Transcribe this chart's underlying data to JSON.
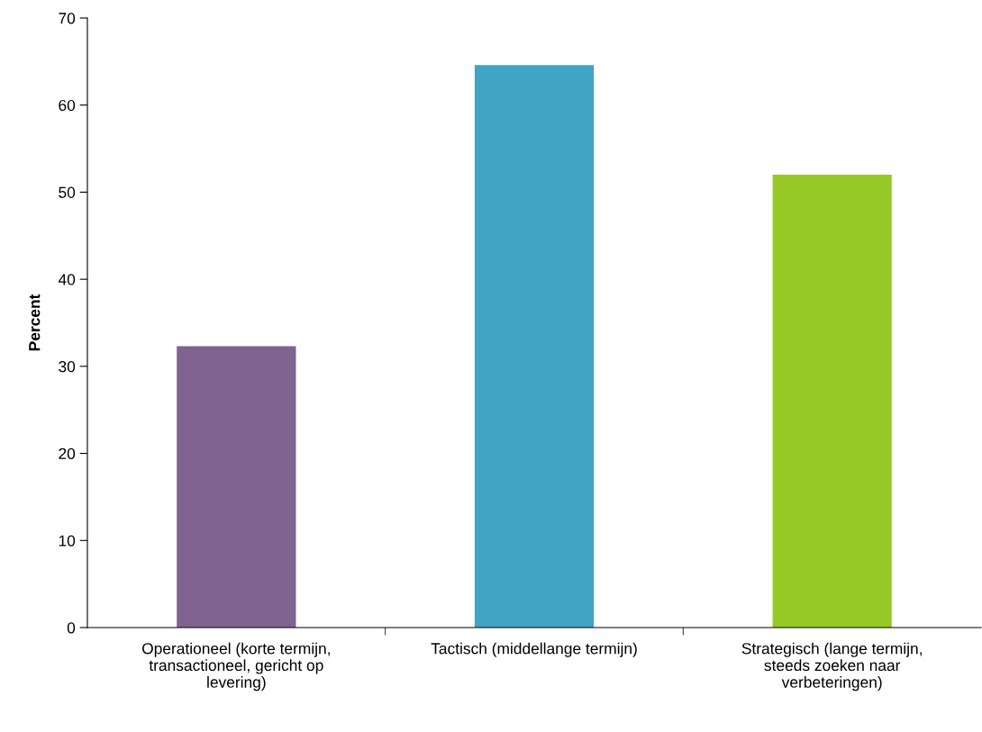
{
  "chart_data": {
    "type": "bar",
    "ylabel": "Percent",
    "categories": [
      "Operationeel (korte termijn, transactioneel, gericht op levering)",
      "Tactisch (middellange termijn)",
      "Strategisch (lange termijn, steeds zoeken naar verbeteringen)"
    ],
    "values": [
      32.3,
      64.6,
      52.0
    ],
    "colors": [
      "#7f6391",
      "#40a4c4",
      "#97c926"
    ],
    "ylim": [
      0,
      70
    ],
    "yticks": [
      0,
      10,
      20,
      30,
      40,
      50,
      60,
      70
    ],
    "grid": false,
    "legend": false
  }
}
